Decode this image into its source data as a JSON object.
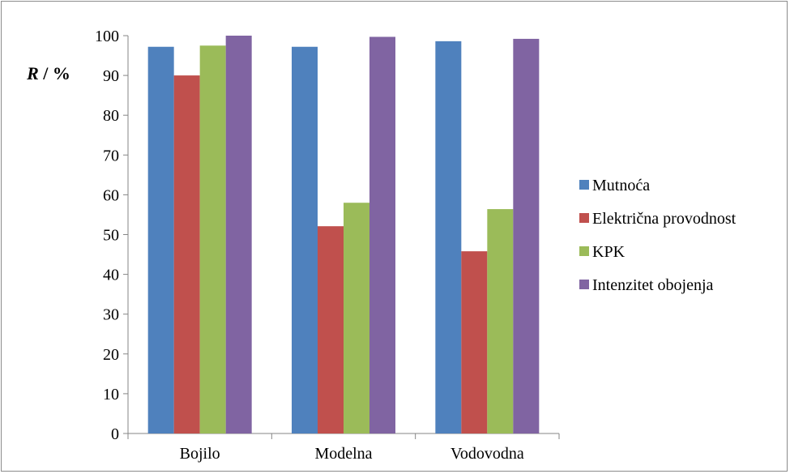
{
  "chart_data": {
    "type": "bar",
    "ylabel": "R / %",
    "ylabel_italic_part": "R",
    "ylabel_rest": " / %",
    "ylim": [
      0,
      100
    ],
    "yticks": [
      0,
      10,
      20,
      30,
      40,
      50,
      60,
      70,
      80,
      90,
      100
    ],
    "categories": [
      "Bojilo",
      "Modelna",
      "Vodovodna"
    ],
    "series": [
      {
        "name": "Mutnoća",
        "color": "#4f81bd",
        "values": [
          97.2,
          97.2,
          98.6
        ]
      },
      {
        "name": "Električna provodnost",
        "color": "#c0504d",
        "values": [
          90.0,
          52.1,
          45.8
        ]
      },
      {
        "name": "KPK",
        "color": "#9bbb59",
        "values": [
          97.5,
          58.0,
          56.4
        ]
      },
      {
        "name": "Intenzitet obojenja",
        "color": "#8064a2",
        "values": [
          100.0,
          99.7,
          99.2
        ]
      }
    ],
    "grid": false,
    "legend_position": "right"
  }
}
